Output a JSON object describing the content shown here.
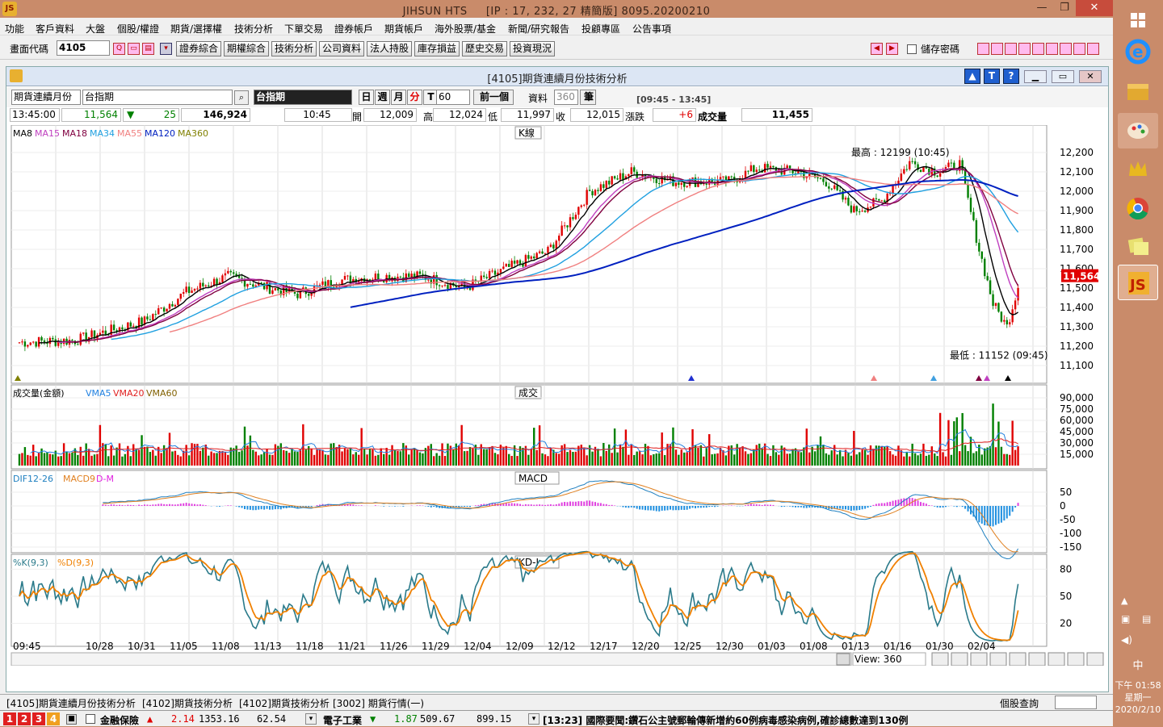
{
  "app": {
    "title": "JIHSUN HTS",
    "connection": "[IP : 17, 232, 27 精簡版] 8095.20200210"
  },
  "menu": [
    "功能",
    "客戶資料",
    "大盤",
    "個股/權證",
    "期貨/選擇權",
    "技術分析",
    "下單交易",
    "證券帳戶",
    "期貨帳戶",
    "海外股票/基金",
    "新聞/研究報告",
    "投顧專區",
    "公告事項"
  ],
  "toolbar": {
    "screen_code_label": "畫面代碼",
    "screen_code": "4105",
    "buttons": [
      "證券綜合",
      "期權綜合",
      "技術分析",
      "公司資料",
      "法人持股",
      "庫存損益",
      "歷史交易",
      "投資現況"
    ],
    "save_pwd": "儲存密碼"
  },
  "window": {
    "title": "[4105]期貨連續月份技術分析"
  },
  "controls": {
    "contract_type": "期貨連續月份",
    "contract_name": "台指期",
    "product_label": "台指期",
    "periods": [
      "日",
      "週",
      "月",
      "分",
      "T"
    ],
    "active_period": "分",
    "period_value": "60",
    "prev_button": "前一個",
    "data_label": "資料",
    "data_count": "360",
    "unit": "筆",
    "time_range": "[09:45 - 13:45]"
  },
  "quote": {
    "time": "13:45:00",
    "price": "11,564",
    "change": "25",
    "volume": "146,924",
    "bar_time": "10:45",
    "open_label": "開",
    "open": "12,009",
    "high_label": "高",
    "high": "12,024",
    "low_label": "低",
    "low": "11,997",
    "close_label": "收",
    "close": "12,015",
    "chg_label": "漲跌",
    "chg": "+6",
    "vol_label": "成交量",
    "vol": "11,455"
  },
  "panels": {
    "kline": {
      "title": "K線",
      "legend": [
        {
          "name": "MA8",
          "color": "#000000"
        },
        {
          "name": "MA15",
          "color": "#c040c0"
        },
        {
          "name": "MA18",
          "color": "#800040"
        },
        {
          "name": "MA34",
          "color": "#20a0e0"
        },
        {
          "name": "MA55",
          "color": "#f08080"
        },
        {
          "name": "MA120",
          "color": "#0020c0"
        },
        {
          "name": "MA360",
          "color": "#808000"
        }
      ],
      "high_label": "最高 : 12199 (10:45)",
      "low_label": "最低 : 11152 (09:45)",
      "current": "11,564",
      "y_ticks": [
        "12,200",
        "12,100",
        "12,000",
        "11,900",
        "11,800",
        "11,700",
        "11,600",
        "11,500",
        "11,400",
        "11,300",
        "11,200",
        "11,100"
      ]
    },
    "volume": {
      "title": "成交",
      "legend": [
        {
          "name": "成交量(金額)",
          "color": "#000000"
        },
        {
          "name": "VMA5",
          "color": "#2080e0"
        },
        {
          "name": "VMA20",
          "color": "#e02020"
        },
        {
          "name": "VMA60",
          "color": "#806000"
        }
      ],
      "y_ticks": [
        "90,000",
        "75,000",
        "60,000",
        "45,000",
        "30,000",
        "15,000"
      ]
    },
    "macd": {
      "title": "MACD",
      "legend": [
        {
          "name": "DIF12-26",
          "color": "#2080c0"
        },
        {
          "name": "MACD9",
          "color": "#e08020"
        },
        {
          "name": "D-M",
          "color": "#e020e0"
        }
      ],
      "y_ticks": [
        "50",
        "0",
        "-50",
        "-100",
        "-150"
      ]
    },
    "kd": {
      "title": "KD-I",
      "legend": [
        {
          "name": "%K(9,3)",
          "color": "#2a7a8a"
        },
        {
          "name": "%D(9,3)",
          "color": "#f08000"
        }
      ],
      "y_ticks": [
        "80",
        "50",
        "20"
      ]
    }
  },
  "x_labels": [
    "09:45",
    "10/28",
    "10/31",
    "11/05",
    "11/08",
    "11/13",
    "11/18",
    "11/21",
    "11/26",
    "11/29",
    "12/04",
    "12/09",
    "12/12",
    "12/17",
    "12/20",
    "12/25",
    "12/30",
    "01/03",
    "01/08",
    "01/13",
    "01/16",
    "01/30",
    "02/04"
  ],
  "view": {
    "label": "View: 360"
  },
  "bottom_tabs": [
    "[4105]期貨連續月份技術分析",
    "[4102]期貨技術分析",
    "[4102]期貨技術分析",
    "[3002] 期貨行情(一)"
  ],
  "stock_query": "個股查詢",
  "ticker": {
    "tabs": [
      "1",
      "2",
      "3",
      "4"
    ],
    "idx1_name": "金融保險",
    "idx1_chg": "2.14",
    "idx1_val": "1353.16",
    "idx1_vol": "62.54",
    "idx2_name": "電子工業",
    "idx2_chg": "1.87",
    "idx2_val": "509.67",
    "idx2_vol": "899.15",
    "news": "[13:23] 國際要聞:鑽石公主號郵輪傳新增約60例病毒感染病例,確診總數達到130例"
  },
  "clock": {
    "time": "下午 01:58",
    "day": "星期一",
    "date": "2020/2/10",
    "ime": "中"
  },
  "colors": {
    "up": "#e00000",
    "down": "#008000",
    "accent": "#1f5fcf"
  }
}
